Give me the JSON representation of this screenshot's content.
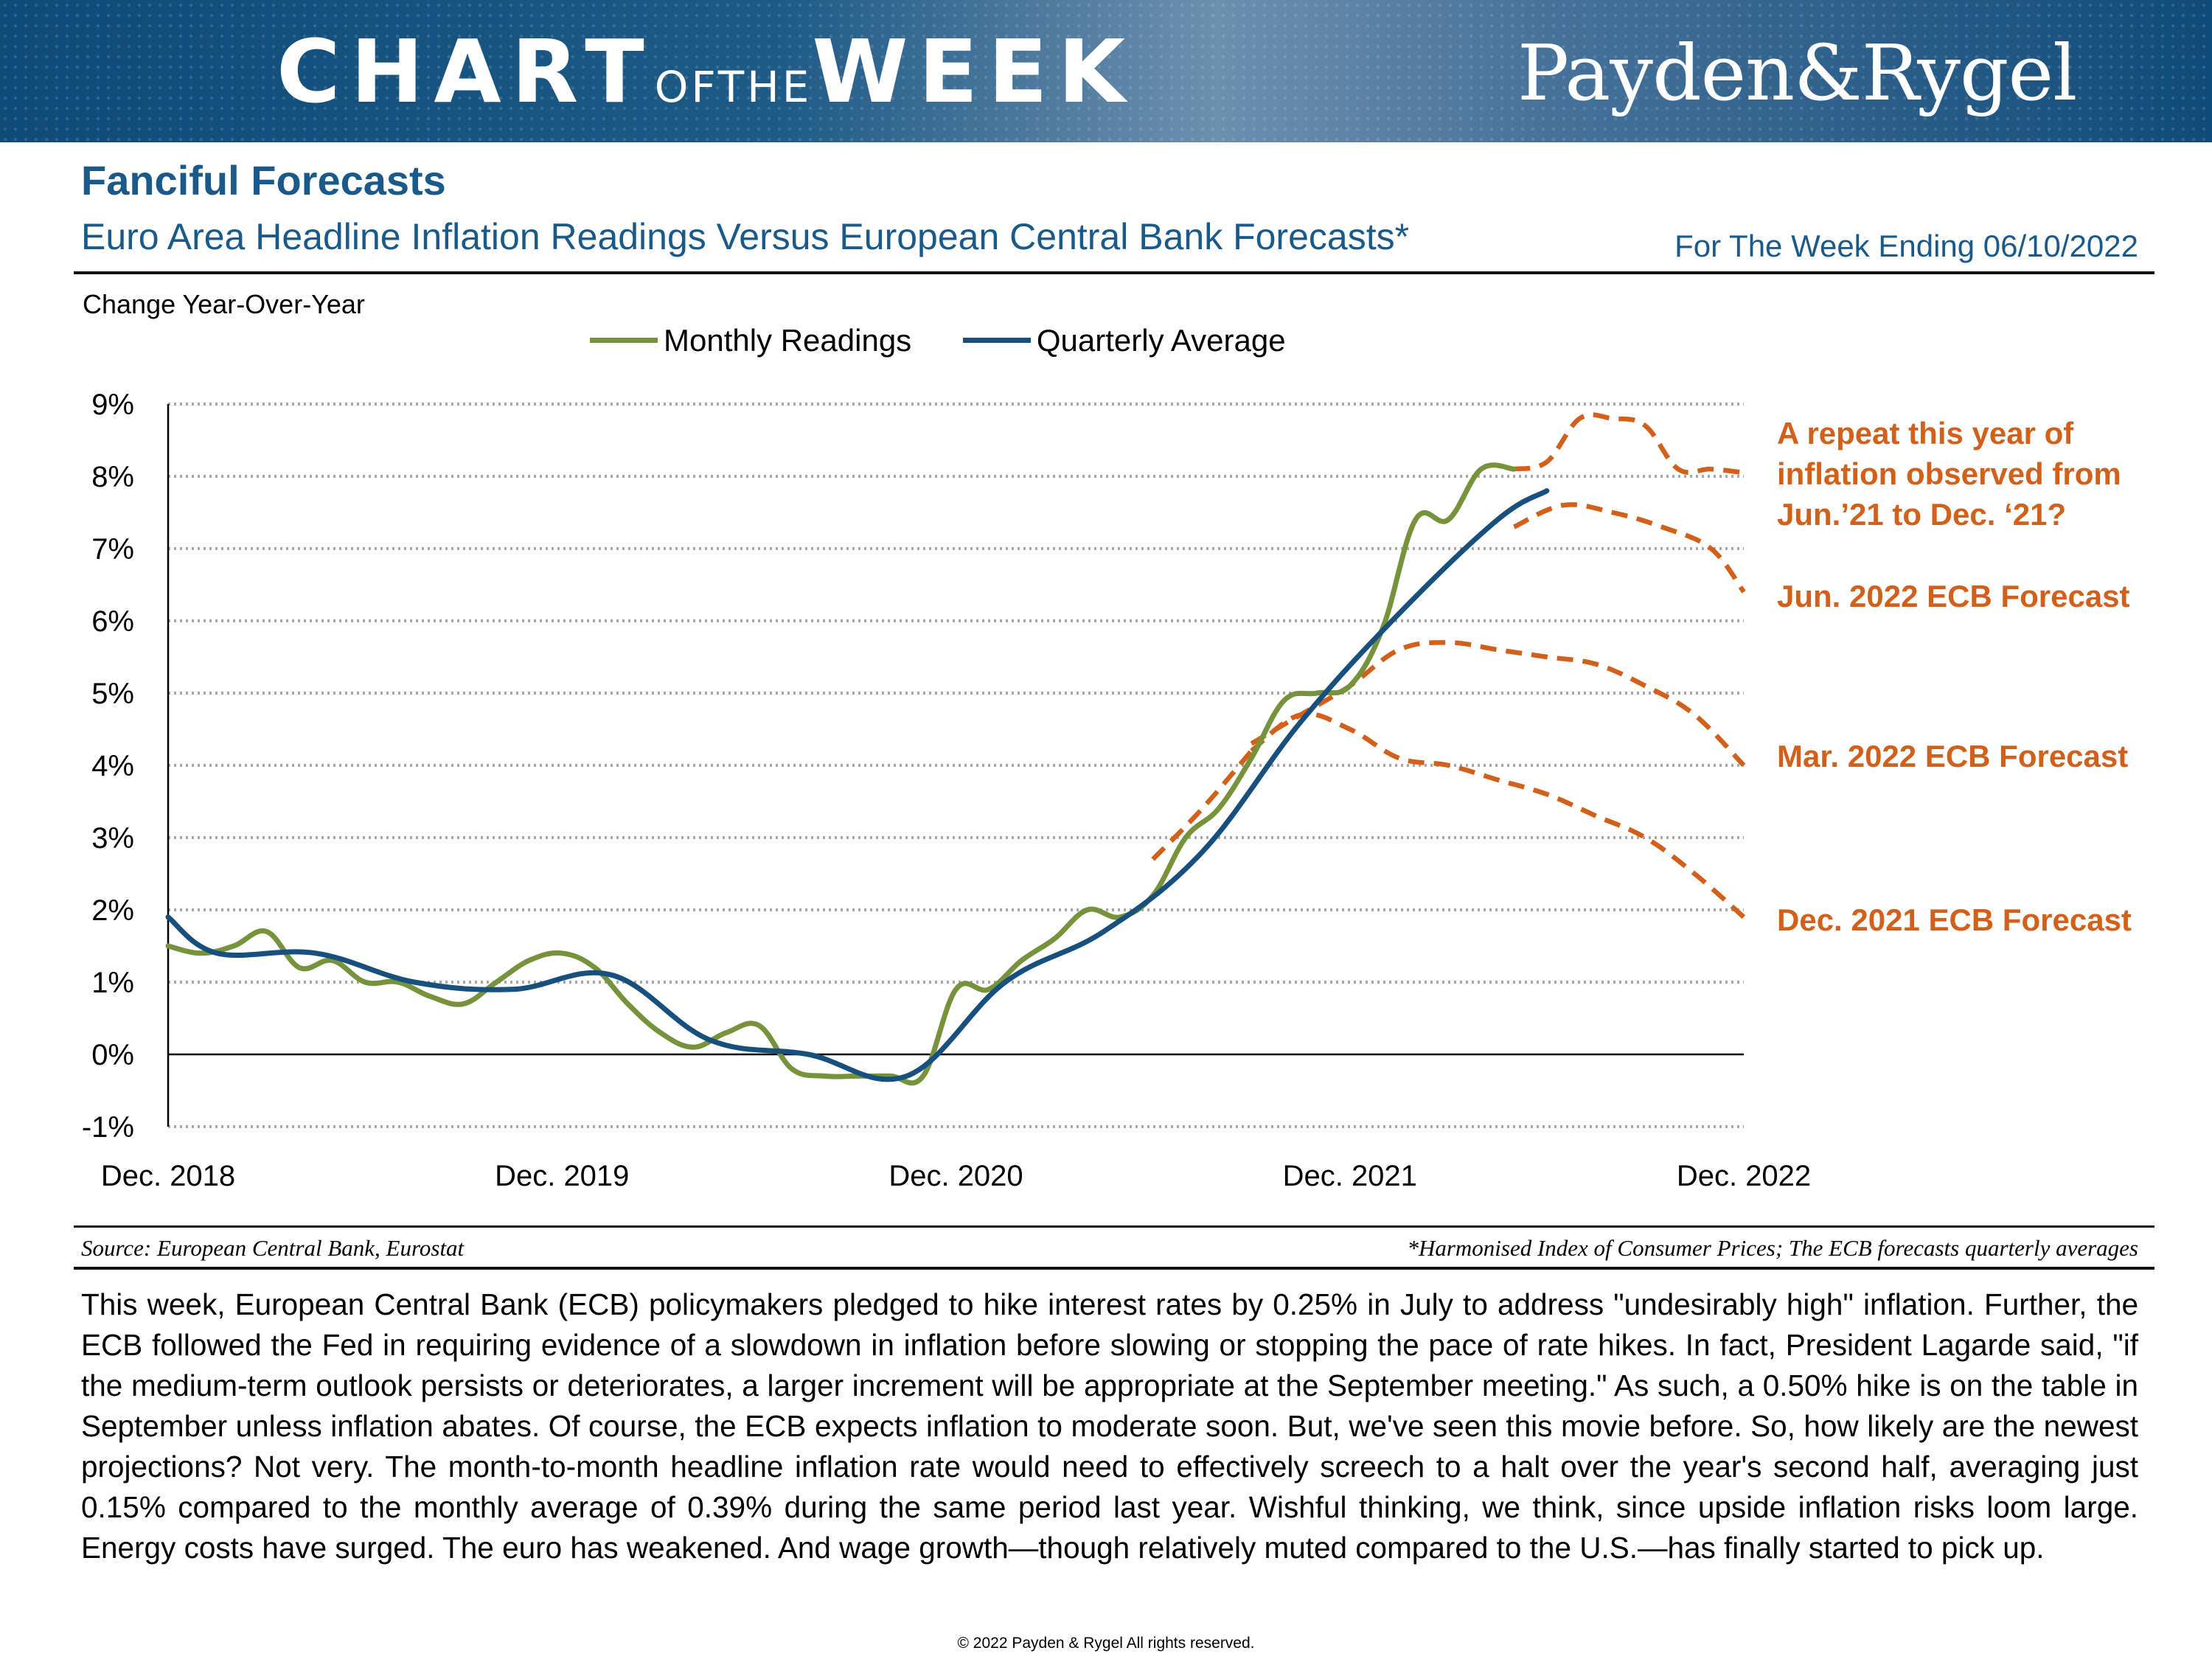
{
  "banner": {
    "title_part1": "CHART",
    "title_part2": "OFTHE",
    "title_part3": "WEEK",
    "logo": "Payden&Rygel",
    "color_primary": "#0f4a78"
  },
  "header": {
    "title": "Fanciful Forecasts",
    "subtitle": "Euro Area Headline Inflation Readings Versus European Central Bank Forecasts*",
    "week_ending": "For The Week Ending 06/10/2022"
  },
  "chart_data": {
    "type": "line",
    "title": "Euro Area Headline Inflation Readings Versus European Central Bank Forecasts*",
    "ylabel": "Change Year-Over-Year",
    "xlabel": "",
    "ylim": [
      -1,
      9
    ],
    "y_ticks": [
      "9%",
      "8%",
      "7%",
      "6%",
      "5%",
      "4%",
      "3%",
      "2%",
      "1%",
      "0%",
      "-1%"
    ],
    "y_tick_values": [
      9,
      8,
      7,
      6,
      5,
      4,
      3,
      2,
      1,
      0,
      -1
    ],
    "x_ticks": [
      "Dec. 2018",
      "Dec. 2019",
      "Dec. 2020",
      "Dec. 2021",
      "Dec. 2022"
    ],
    "x_tick_values": [
      0,
      12,
      24,
      36,
      48
    ],
    "x_unit": "months since Dec. 2018",
    "grid": true,
    "legend": [
      {
        "name": "Monthly Readings",
        "color": "#76933c"
      },
      {
        "name": "Quarterly Average",
        "color": "#174f7d"
      }
    ],
    "series": [
      {
        "name": "Monthly Readings",
        "color": "#76933c",
        "style": "solid",
        "x": [
          0,
          1,
          2,
          3,
          4,
          5,
          6,
          7,
          8,
          9,
          10,
          11,
          12,
          13,
          14,
          15,
          16,
          17,
          18,
          19,
          20,
          21,
          22,
          23,
          24,
          25,
          26,
          27,
          28,
          29,
          30,
          31,
          32,
          33,
          34,
          35,
          36,
          37,
          38,
          39,
          40,
          41
        ],
        "y": [
          1.5,
          1.4,
          1.5,
          1.7,
          1.2,
          1.3,
          1.0,
          1.0,
          0.8,
          0.7,
          1.0,
          1.3,
          1.4,
          1.2,
          0.7,
          0.3,
          0.1,
          0.3,
          0.4,
          -0.2,
          -0.3,
          -0.3,
          -0.3,
          -0.3,
          0.9,
          0.9,
          1.3,
          1.6,
          2.0,
          1.9,
          2.2,
          3.0,
          3.4,
          4.1,
          4.9,
          5.0,
          5.1,
          5.9,
          7.4,
          7.4,
          8.1,
          8.1
        ]
      },
      {
        "name": "Quarterly Average",
        "color": "#174f7d",
        "style": "solid",
        "x": [
          0,
          1.5,
          4.5,
          7.5,
          10.5,
          13.5,
          16.5,
          19.5,
          22.5,
          25.5,
          28.5,
          31.5,
          34.5,
          37.5,
          40.5,
          42
        ],
        "y": [
          1.9,
          1.4,
          1.4,
          1.0,
          0.9,
          1.1,
          0.2,
          0.0,
          -0.3,
          1.0,
          1.7,
          2.8,
          4.6,
          6.1,
          7.4,
          7.8
        ]
      },
      {
        "name": "Dec. 2021 ECB Forecast",
        "color": "#d2601a",
        "style": "dashed",
        "x": [
          33,
          34.5,
          36,
          37.5,
          39,
          40.5,
          42,
          43.5,
          45,
          46.5,
          48
        ],
        "y": [
          4.2,
          4.7,
          4.5,
          4.1,
          4.0,
          3.8,
          3.6,
          3.3,
          3.0,
          2.5,
          1.9
        ]
      },
      {
        "name": "Mar. 2022 ECB Forecast",
        "color": "#d2601a",
        "style": "dashed",
        "x": [
          33,
          34.5,
          36,
          37.5,
          39,
          40.5,
          42,
          43.5,
          45,
          46.5,
          48
        ],
        "y": [
          4.3,
          4.7,
          5.1,
          5.6,
          5.7,
          5.6,
          5.5,
          5.4,
          5.1,
          4.7,
          4.0
        ]
      },
      {
        "name": "Jun. 2022 ECB Forecast",
        "color": "#d2601a",
        "style": "dashed",
        "x": [
          41,
          42.5,
          44,
          45.5,
          47,
          48
        ],
        "y": [
          7.3,
          7.6,
          7.5,
          7.3,
          7.0,
          6.4
        ]
      },
      {
        "name": "Repeat of Jun.'21 to Dec.'21",
        "color": "#d2601a",
        "style": "dashed",
        "x": [
          41,
          42,
          43,
          44,
          45,
          46,
          47,
          48
        ],
        "y": [
          8.1,
          8.2,
          8.8,
          8.8,
          8.7,
          8.1,
          8.1,
          8.05
        ]
      },
      {
        "name": "Early projection segment",
        "color": "#d2601a",
        "style": "dashed",
        "x": [
          30,
          31.5,
          33
        ],
        "y": [
          2.7,
          3.4,
          4.2
        ]
      }
    ],
    "annotations": {
      "repeat_line1": "A repeat this year of",
      "repeat_line2": "inflation observed from",
      "repeat_line3": "Jun.’21 to Dec. ‘21?",
      "jun_label": "Jun. 2022 ECB Forecast",
      "mar_label": "Mar. 2022 ECB Forecast",
      "dec_label": "Dec. 2021 ECB Forecast"
    }
  },
  "footer": {
    "source": "Source: European Central Bank, Eurostat",
    "footnote": "*Harmonised Index of Consumer Prices; The ECB forecasts quarterly averages",
    "body": "This week, European Central Bank (ECB) policymakers pledged to hike interest rates by 0.25% in July to address \"undesirably high\" inflation. Further, the ECB followed the Fed in requiring evidence of a slowdown in inflation before slowing or stopping the pace of rate hikes. In fact, President Lagarde said, \"if the medium-term outlook persists or deteriorates, a larger increment will be appropriate at the September meeting.\" As such, a 0.50% hike is on the table in September unless inflation abates. Of course, the ECB expects inflation to moderate soon. But, we've seen this movie before. So, how likely are the newest projections? Not very. The month-to-month headline inflation rate would need to effectively screech to a halt over the year's second half, averaging just 0.15% compared to the monthly average of 0.39% during the same period last year. Wishful thinking, we think, since upside inflation risks loom large. Energy costs have surged. The euro has weakened. And wage growth—though relatively muted compared to the U.S.—has finally started to pick up.",
    "copyright": "© 2022 Payden & Rygel All rights reserved."
  }
}
